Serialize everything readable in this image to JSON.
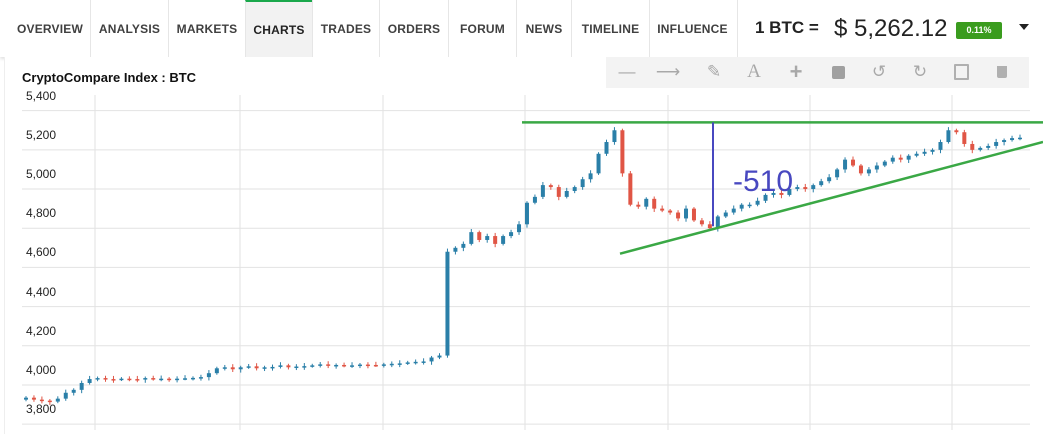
{
  "nav": {
    "tabs": [
      "OVERVIEW",
      "ANALYSIS",
      "MARKETS",
      "CHARTS",
      "TRADES",
      "ORDERS",
      "FORUM",
      "NEWS",
      "TIMELINE",
      "INFLUENCE"
    ],
    "active": "CHARTS"
  },
  "price": {
    "label": "1 BTC =",
    "value": "$ 5,262.12",
    "change": "0.11%",
    "change_color": "#3a9c1e"
  },
  "chart_title": "CryptoCompare Index : BTC",
  "toolbar": {
    "icons": [
      "minus-icon",
      "arrow-right-icon",
      "pencil-icon",
      "text-icon",
      "plus-icon",
      "square-icon",
      "undo-icon",
      "redo-icon",
      "save-icon",
      "trash-icon"
    ]
  },
  "annotation": {
    "label": "-510",
    "color": "#4848c0"
  },
  "chart_data": {
    "type": "candlestick",
    "title": "CryptoCompare Index : BTC",
    "y_ticks": [
      "5,400",
      "5,200",
      "5,000",
      "4,800",
      "4,600",
      "4,400",
      "4,200",
      "4,000",
      "3,800"
    ],
    "ylim": [
      3770,
      5480
    ],
    "grid": true,
    "up_color": "#2a7fa8",
    "down_color": "#e05545",
    "trendline_color": "#3aa845",
    "series_close": [
      3935,
      3925,
      3920,
      3915,
      3930,
      3960,
      3975,
      4010,
      4030,
      4035,
      4030,
      4028,
      4032,
      4030,
      4028,
      4035,
      4030,
      4032,
      4030,
      4032,
      4034,
      4036,
      4040,
      4060,
      4085,
      4090,
      4080,
      4090,
      4095,
      4085,
      4090,
      4092,
      4100,
      4090,
      4094,
      4096,
      4100,
      4105,
      4100,
      4102,
      4098,
      4100,
      4104,
      4102,
      4100,
      4105,
      4108,
      4110,
      4115,
      4118,
      4120,
      4140,
      4150,
      4680,
      4700,
      4720,
      4780,
      4740,
      4760,
      4720,
      4760,
      4780,
      4820,
      4930,
      4960,
      5020,
      5010,
      4960,
      4990,
      5010,
      5050,
      5080,
      5180,
      5240,
      5300,
      5080,
      4920,
      4910,
      4950,
      4900,
      4890,
      4880,
      4850,
      4900,
      4840,
      4820,
      4800,
      4860,
      4880,
      4900,
      4920,
      4920,
      4940,
      4970,
      4980,
      4970,
      5000,
      5010,
      5000,
      5020,
      5040,
      5060,
      5100,
      5150,
      5120,
      5080,
      5100,
      5120,
      5140,
      5160,
      5150,
      5170,
      5180,
      5190,
      5200,
      5240,
      5300,
      5290,
      5230,
      5200,
      5210,
      5220,
      5240,
      5250,
      5260,
      5262
    ]
  }
}
